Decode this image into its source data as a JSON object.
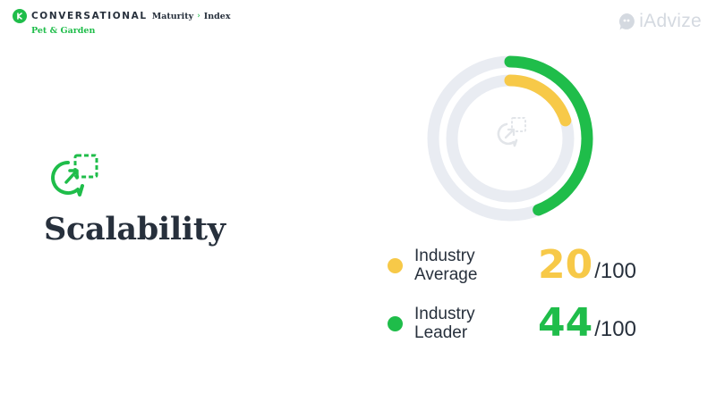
{
  "header": {
    "brand_main": "CONVERSATIONAL",
    "brand_sub": "Maturity",
    "separator": "›",
    "brand_index": "Index",
    "segment": "Pet & Garden"
  },
  "logo": {
    "text": "iAdvize"
  },
  "metric": {
    "title": "Scalability",
    "icon": "scalability-chat-icon"
  },
  "colors": {
    "average": "#f7c948",
    "leader": "#1fbd4a",
    "track": "#e9ecf2",
    "text": "#27303c"
  },
  "chart_data": {
    "type": "radial-bar",
    "max": 100,
    "series": [
      {
        "name": "Industry Average",
        "value": 20
      },
      {
        "name": "Industry Leader",
        "value": 44
      }
    ]
  },
  "legend": [
    {
      "label_line1": "Industry",
      "label_line2": "Average",
      "value": "20",
      "max": "/100"
    },
    {
      "label_line1": "Industry",
      "label_line2": "Leader",
      "value": "44",
      "max": "/100"
    }
  ]
}
